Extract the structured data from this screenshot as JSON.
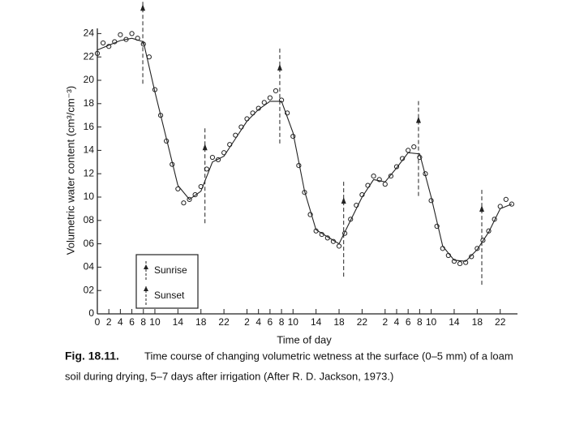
{
  "chart_data": {
    "type": "scatter-line",
    "x_label": "Time of day",
    "y_label": "Volumetric water content (cm³/cm⁻³)",
    "xlim": [
      0,
      73
    ],
    "ylim": [
      0,
      25
    ],
    "xticks": [
      0,
      2,
      4,
      6,
      8,
      10,
      14,
      18,
      22,
      {
        "value": 26,
        "label": "2"
      },
      {
        "value": 28,
        "label": "4"
      },
      {
        "value": 30,
        "label": "6"
      },
      {
        "value": 32,
        "label": "8"
      },
      {
        "value": 34,
        "label": "10"
      },
      {
        "value": 38,
        "label": "14"
      },
      {
        "value": 42,
        "label": "18"
      },
      {
        "value": 46,
        "label": "22"
      },
      {
        "value": 50,
        "label": "2"
      },
      {
        "value": 52,
        "label": "4"
      },
      {
        "value": 54,
        "label": "6"
      },
      {
        "value": 56,
        "label": "8"
      },
      {
        "value": 58,
        "label": "10"
      },
      {
        "value": 62,
        "label": "14"
      },
      {
        "value": 66,
        "label": "18"
      },
      {
        "value": 70,
        "label": "22"
      }
    ],
    "yticks": [
      0,
      {
        "value": 2,
        "label": "02"
      },
      {
        "value": 4,
        "label": "04"
      },
      {
        "value": 6,
        "label": "06"
      },
      {
        "value": 8,
        "label": "08"
      },
      10,
      12,
      14,
      16,
      18,
      20,
      22,
      24
    ],
    "color": "#222222",
    "series": [
      {
        "style": "points",
        "x": [
          0,
          1,
          2,
          3,
          4,
          5,
          6,
          7,
          8,
          9,
          10,
          11,
          12,
          13,
          14,
          15,
          16,
          17,
          18,
          19,
          20,
          21,
          22,
          23,
          24,
          25,
          26,
          27,
          28,
          29,
          30,
          31,
          32,
          33,
          34,
          35,
          36,
          37,
          38,
          39,
          40,
          41,
          42,
          43,
          44,
          45,
          46,
          47,
          48,
          49,
          50,
          51,
          52,
          53,
          54,
          55,
          56,
          57,
          58,
          59,
          60,
          61,
          62,
          63,
          64,
          65,
          66,
          67,
          68,
          69,
          70,
          71,
          72
        ],
        "values": [
          22.3,
          23.2,
          22.9,
          23.3,
          23.9,
          23.5,
          24,
          23.6,
          23.1,
          22,
          19.2,
          17,
          14.8,
          12.8,
          10.7,
          9.5,
          9.8,
          10.2,
          10.9,
          12.4,
          13.4,
          13.2,
          13.8,
          14.5,
          15.3,
          16,
          16.7,
          17.2,
          17.6,
          18.1,
          18.5,
          19.1,
          18.3,
          17.2,
          15.2,
          12.7,
          10.4,
          8.5,
          7.1,
          6.8,
          6.5,
          6.2,
          5.8,
          6.9,
          8.1,
          9.3,
          10.2,
          11,
          11.8,
          11.5,
          11.1,
          11.8,
          12.6,
          13.3,
          14,
          14.3,
          13.4,
          12,
          9.7,
          7.5,
          5.6,
          5,
          4.5,
          4.3,
          4.4,
          4.9,
          5.6,
          6.3,
          7.1,
          8.1,
          9.2,
          9.8,
          9.4
        ]
      },
      {
        "style": "line",
        "x": [
          0,
          2,
          4,
          6,
          8,
          10,
          12,
          14,
          16,
          18,
          20,
          22,
          24,
          26,
          28,
          30,
          32,
          34,
          36,
          38,
          40,
          42,
          44,
          46,
          48,
          50,
          52,
          54,
          56,
          58,
          60,
          62,
          64,
          66,
          68,
          70,
          72
        ],
        "values": [
          22.6,
          23,
          23.4,
          23.6,
          23.3,
          19,
          15,
          11,
          9.8,
          10.5,
          13,
          13.5,
          15,
          16.5,
          17.5,
          18.2,
          18.2,
          15.5,
          10.5,
          7.2,
          6.6,
          6,
          8,
          10,
          11.5,
          11.3,
          12.5,
          13.8,
          13.7,
          10,
          5.8,
          4.6,
          4.5,
          5.5,
          7,
          9,
          9.4
        ]
      }
    ],
    "sunrise": [
      7.9,
      31.7,
      55.8
    ],
    "sunset": [
      18.7,
      42.8,
      66.8
    ],
    "legend": {
      "sunrise": "Sunrise",
      "sunset": "Sunset"
    }
  },
  "caption": {
    "label": "Fig. 18.11.",
    "line1": "Time course of changing volumetric wetness at the surface (0–5 mm) of a loam",
    "line2": "soil during drying, 5–7 days after irrigation (After R. D. Jackson, 1973.)"
  }
}
